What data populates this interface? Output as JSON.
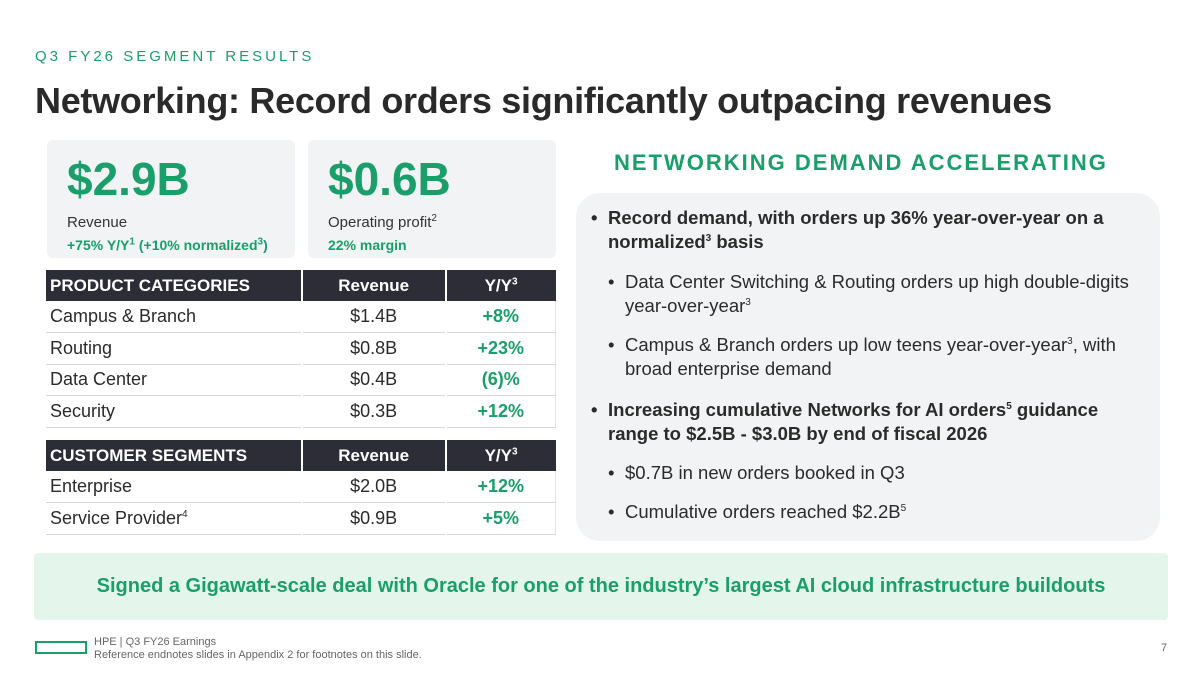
{
  "header": {
    "eyebrow": "Q3 FY26 SEGMENT RESULTS",
    "title": "Networking: Record orders significantly outpacing revenues"
  },
  "kpis": [
    {
      "value": "$2.9B",
      "label": "Revenue",
      "label_sup": "",
      "sub": "+75% Y/Y",
      "sub_sup": "1",
      "sub2": " (+10% normalized",
      "sub2_sup": "3",
      "sub3": ")"
    },
    {
      "value": "$0.6B",
      "label": "Operating profit",
      "label_sup": "2",
      "sub": "22% margin"
    }
  ],
  "product_table": {
    "headers": [
      "PRODUCT CATEGORIES",
      "Revenue",
      "Y/Y",
      "3"
    ],
    "rows": [
      {
        "name": "Campus & Branch",
        "revenue": "$1.4B",
        "yoy": "+8%"
      },
      {
        "name": "Routing",
        "revenue": "$0.8B",
        "yoy": "+23%"
      },
      {
        "name": "Data Center",
        "revenue": "$0.4B",
        "yoy": "(6)%"
      },
      {
        "name": "Security",
        "revenue": "$0.3B",
        "yoy": "+12%"
      }
    ]
  },
  "customer_table": {
    "headers": [
      "CUSTOMER SEGMENTS",
      "Revenue",
      "Y/Y",
      "3"
    ],
    "rows": [
      {
        "name": "Enterprise",
        "sup": "",
        "revenue": "$2.0B",
        "yoy": "+12%"
      },
      {
        "name": "Service Provider",
        "sup": "4",
        "revenue": "$0.9B",
        "yoy": "+5%"
      }
    ]
  },
  "demand": {
    "title": "NETWORKING DEMAND ACCELERATING",
    "bullet1_a": "Record demand, with orders up 36% year-over-year on a normalized",
    "bullet1_sup": "3",
    "bullet1_b": " basis",
    "sub1_a": "Data Center Switching & Routing orders up high double-digits year-over-year",
    "sub1_sup": "3",
    "sub2_a": "Campus & Branch orders up low teens year-over-year",
    "sub2_sup": "3",
    "sub2_b": ", with broad enterprise demand",
    "bullet2_a": "Increasing cumulative Networks for AI orders",
    "bullet2_sup": "5",
    "bullet2_b": " guidance range to $2.5B - $3.0B by end of fiscal 2026",
    "sub3_a": "$0.7B in new orders booked in Q3",
    "sub4_a": "Cumulative orders reached $2.2B",
    "sub4_sup": "5"
  },
  "banner": "Signed a Gigawatt-scale deal with Oracle for one of the industry’s largest AI cloud infrastructure buildouts",
  "footer": {
    "line1": "HPE  |  Q3 FY26 Earnings",
    "line2": "Reference endnotes slides in Appendix 2 for footnotes on this slide.",
    "page": "7"
  },
  "colors": {
    "accent": "#1a9e6a",
    "header_bg": "#2d2d38",
    "panel_bg": "#f1f3f4",
    "banner_bg": "#e4f5ec"
  }
}
